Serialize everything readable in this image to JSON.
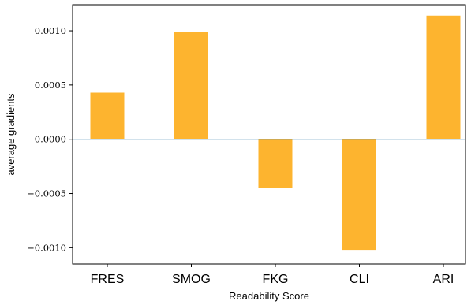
{
  "chart_data": {
    "type": "bar",
    "categories": [
      "FRES",
      "SMOG",
      "FKG",
      "CLI",
      "ARI"
    ],
    "values": [
      0.00043,
      0.00099,
      -0.00045,
      -0.00102,
      0.00114
    ],
    "xlabel": "Readability Score",
    "ylabel": "average gradients",
    "ylim": [
      -0.00115,
      0.00124
    ],
    "yticks": [
      0.001,
      0.0005,
      0.0,
      -0.0005,
      -0.001
    ],
    "ytick_labels": [
      "0.0010",
      "0.0005",
      "0.0000",
      "−0.0005",
      "−0.0010"
    ],
    "bar_color": "#FDB42F",
    "zero_line_color": "#4A8BB5",
    "grid": false
  }
}
